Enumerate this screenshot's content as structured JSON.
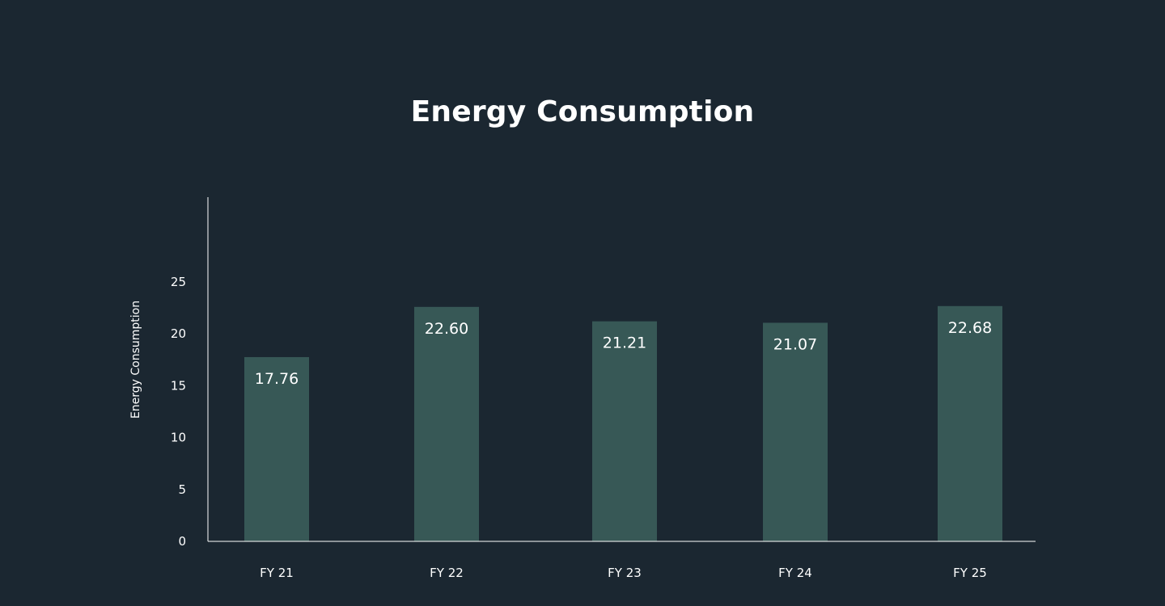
{
  "colors": {
    "background": "#1b2731",
    "bar": "#375856",
    "text": "#ffffff",
    "axis": "#ffffff"
  },
  "chart_data": {
    "type": "bar",
    "title": "Energy Consumption",
    "xlabel": "",
    "ylabel": "Energy Consumption",
    "categories": [
      "FY 21",
      "FY 22",
      "FY 23",
      "FY 24",
      "FY 25"
    ],
    "values": [
      17.76,
      22.6,
      21.21,
      21.07,
      22.68
    ],
    "value_labels": [
      "17.76",
      "22.60",
      "21.21",
      "21.07",
      "22.68"
    ],
    "y_ticks": [
      0,
      5,
      10,
      15,
      20,
      25
    ],
    "ylim": [
      0,
      33
    ],
    "grid": false,
    "legend": "none"
  }
}
